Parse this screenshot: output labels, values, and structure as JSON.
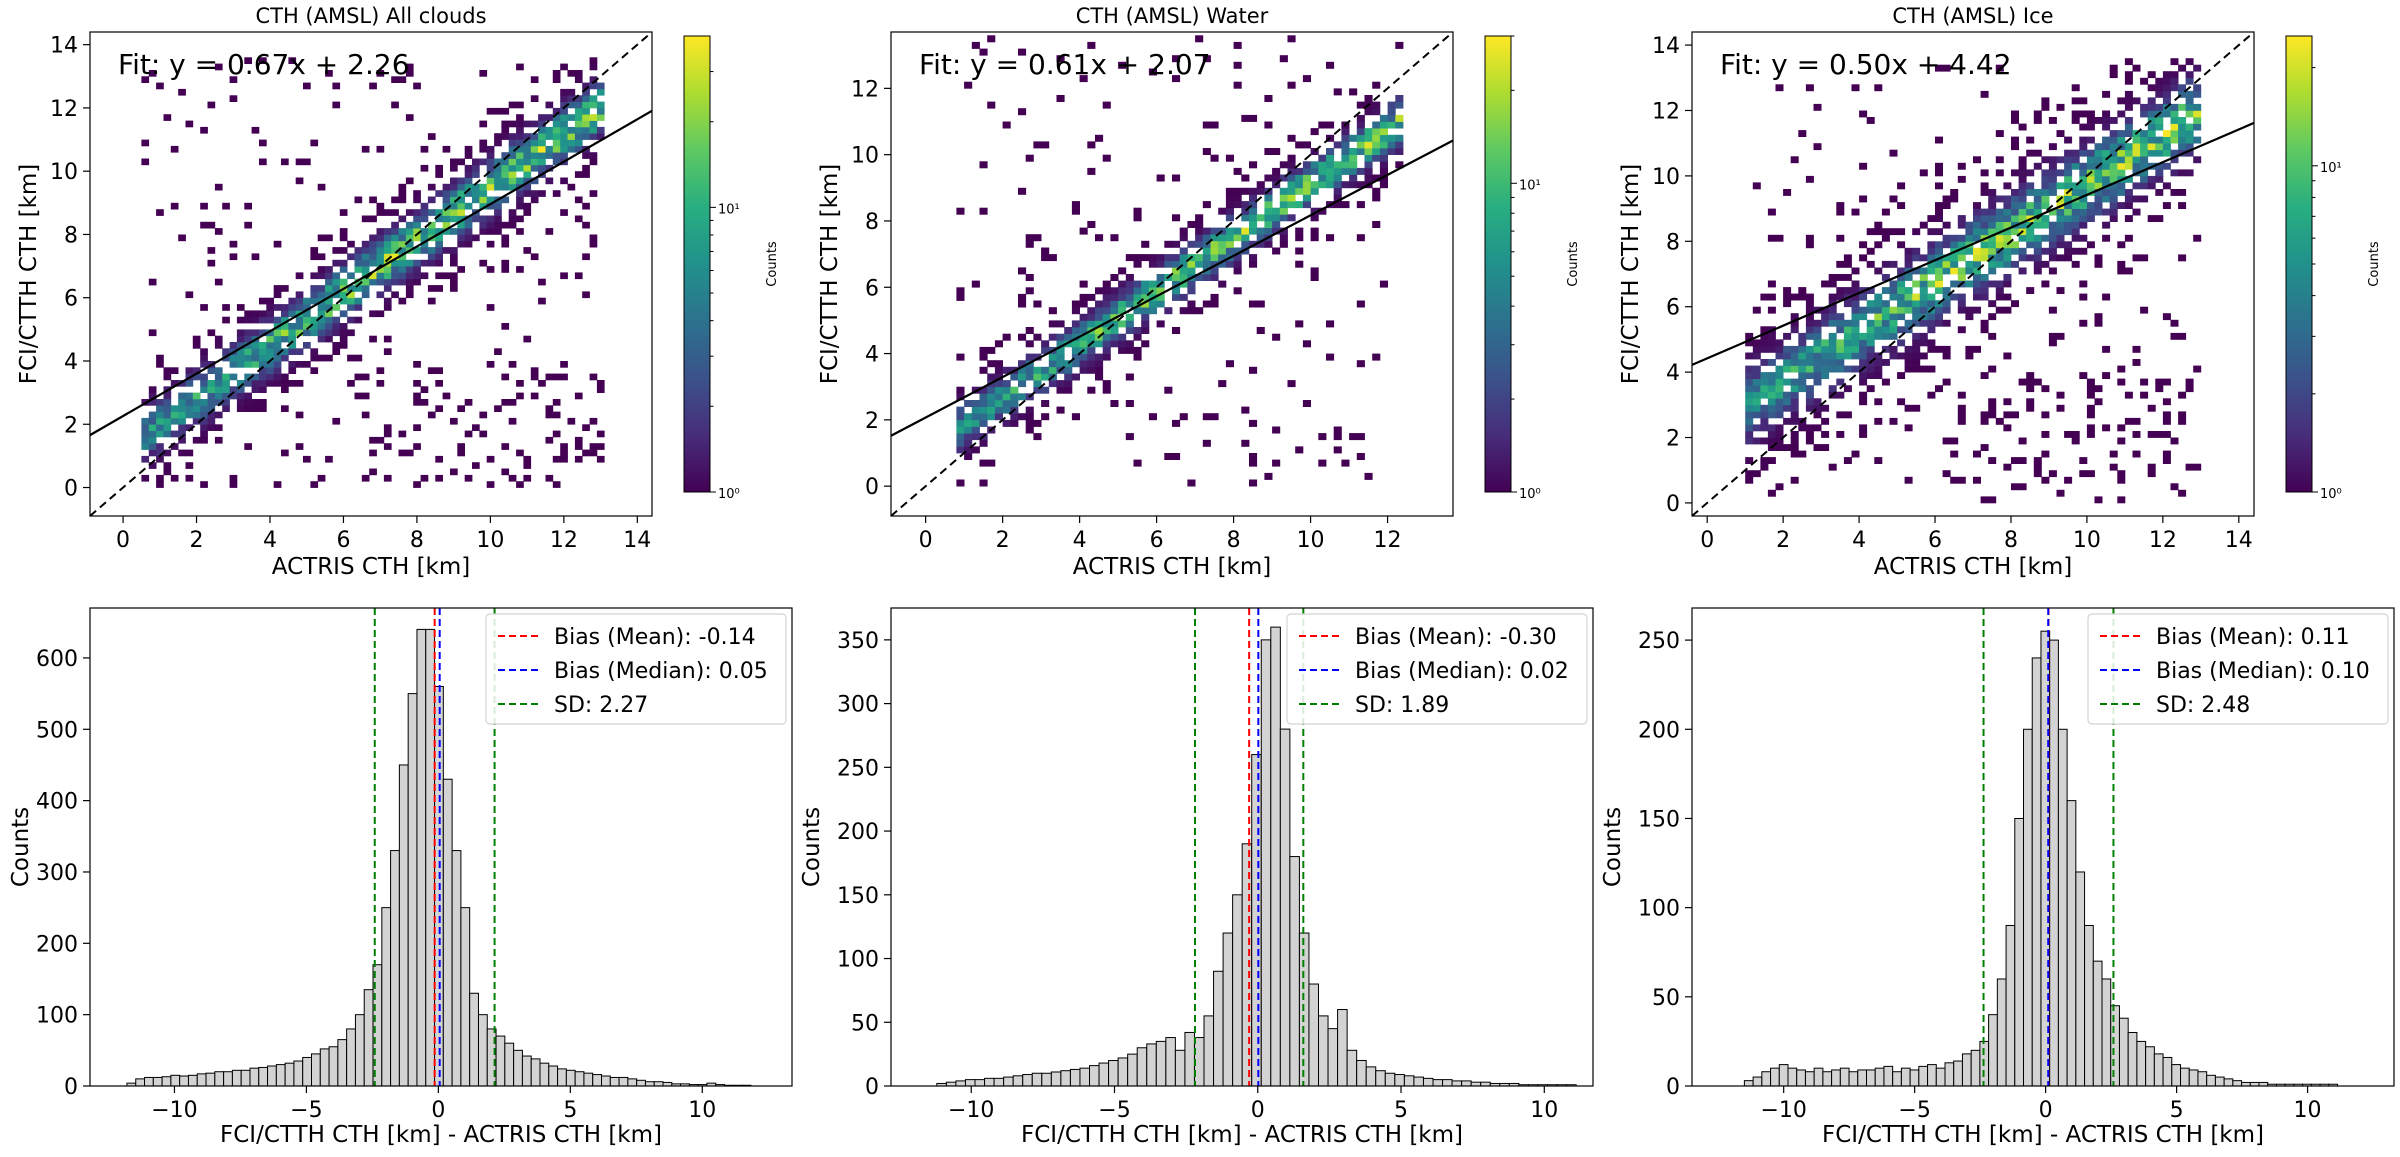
{
  "chart_data": [
    {
      "type": "heatmap",
      "title": "CTH (AMSL) All clouds",
      "xlabel": "ACTRIS CTH [km]",
      "ylabel": "FCI/CTTH CTH [km]",
      "xlim": [
        -0.9,
        14.4
      ],
      "ylim": [
        -0.9,
        14.4
      ],
      "xticks": [
        0,
        2,
        4,
        6,
        8,
        10,
        12,
        14
      ],
      "yticks": [
        0,
        2,
        4,
        6,
        8,
        10,
        12,
        14
      ],
      "fit": {
        "slope": 0.67,
        "intercept": 2.26,
        "label": "Fit: y = 0.67x + 2.26"
      },
      "one_to_one": true,
      "colorbar": {
        "label": "Counts",
        "scale": "log",
        "ticks": [
          "10⁰",
          "10¹"
        ],
        "vmin": 1,
        "vmax": 40
      },
      "density": {
        "x_range": [
          0.5,
          13
        ],
        "spread": 1.0,
        "extra_ice": true
      }
    },
    {
      "type": "heatmap",
      "title": "CTH (AMSL) Water",
      "xlabel": "ACTRIS CTH [km]",
      "ylabel": "FCI/CTTH CTH [km]",
      "xlim": [
        -0.9,
        13.7
      ],
      "ylim": [
        -0.9,
        13.7
      ],
      "xticks": [
        0,
        2,
        4,
        6,
        8,
        10,
        12
      ],
      "yticks": [
        0,
        2,
        4,
        6,
        8,
        10,
        12
      ],
      "fit": {
        "slope": 0.61,
        "intercept": 2.07,
        "label": "Fit: y = 0.61x + 2.07"
      },
      "one_to_one": true,
      "colorbar": {
        "label": "Counts",
        "scale": "log",
        "ticks": [
          "10⁰",
          "10¹"
        ],
        "vmin": 1,
        "vmax": 30
      },
      "density": {
        "x_range": [
          0.8,
          12.2
        ],
        "spread": 0.8,
        "extra_ice": false
      }
    },
    {
      "type": "heatmap",
      "title": "CTH (AMSL) Ice",
      "xlabel": "ACTRIS CTH [km]",
      "ylabel": "FCI/CTTH CTH [km]",
      "xlim": [
        -0.4,
        14.4
      ],
      "ylim": [
        -0.4,
        14.4
      ],
      "xticks": [
        0,
        2,
        4,
        6,
        8,
        10,
        12,
        14
      ],
      "yticks": [
        0,
        2,
        4,
        6,
        8,
        10,
        12,
        14
      ],
      "fit": {
        "slope": 0.5,
        "intercept": 4.42,
        "label": "Fit: y = 0.50x + 4.42"
      },
      "one_to_one": true,
      "colorbar": {
        "label": "Counts",
        "scale": "log",
        "ticks": [
          "10⁰",
          "10¹"
        ],
        "vmin": 1,
        "vmax": 25
      },
      "density": {
        "x_range": [
          1,
          12.8
        ],
        "spread": 1.3,
        "extra_ice": true
      }
    },
    {
      "type": "bar",
      "title": "",
      "xlabel": "FCI/CTTH CTH [km] - ACTRIS CTH [km]",
      "ylabel": "Counts",
      "xlim": [
        -13.2,
        13.4
      ],
      "ylim": [
        0,
        670
      ],
      "xticks": [
        -10,
        -5,
        0,
        5,
        10
      ],
      "xtick_labels": [
        "−10",
        "−5",
        "0",
        "5",
        "10"
      ],
      "yticks": [
        0,
        100,
        200,
        300,
        400,
        500,
        600
      ],
      "bins": {
        "start": -11.8,
        "width": 0.333,
        "counts": [
          4,
          10,
          12,
          12,
          13,
          15,
          14,
          15,
          17,
          18,
          20,
          20,
          22,
          22,
          25,
          26,
          28,
          30,
          32,
          35,
          40,
          45,
          52,
          55,
          65,
          80,
          100,
          135,
          170,
          250,
          330,
          450,
          550,
          640,
          640,
          560,
          430,
          330,
          250,
          130,
          100,
          80,
          70,
          60,
          50,
          42,
          38,
          32,
          28,
          24,
          22,
          20,
          18,
          16,
          14,
          12,
          12,
          10,
          8,
          6,
          6,
          5,
          3,
          3,
          2,
          2,
          4,
          2,
          1,
          1,
          1
        ]
      },
      "lines": {
        "mean": -0.14,
        "median": 0.05,
        "sd_lower": -2.41,
        "sd_upper": 2.13
      },
      "legend": [
        "Bias (Mean): -0.14",
        "Bias (Median): 0.05",
        "SD: 2.27"
      ]
    },
    {
      "type": "bar",
      "title": "",
      "xlabel": "FCI/CTTH CTH [km] - ACTRIS CTH [km]",
      "ylabel": "Counts",
      "xlim": [
        -12.8,
        11.7
      ],
      "ylim": [
        0,
        375
      ],
      "xticks": [
        -10,
        -5,
        0,
        5,
        10
      ],
      "xtick_labels": [
        "−10",
        "−5",
        "0",
        "5",
        "10"
      ],
      "yticks": [
        0,
        50,
        100,
        150,
        200,
        250,
        300,
        350
      ],
      "bins": {
        "start": -11.2,
        "width": 0.333,
        "counts": [
          2,
          3,
          4,
          5,
          5,
          6,
          6,
          7,
          8,
          9,
          10,
          10,
          11,
          12,
          13,
          14,
          16,
          18,
          20,
          22,
          25,
          30,
          33,
          35,
          38,
          28,
          42,
          38,
          55,
          90,
          120,
          150,
          190,
          260,
          350,
          360,
          280,
          180,
          120,
          80,
          55,
          45,
          60,
          28,
          20,
          15,
          12,
          10,
          9,
          8,
          7,
          6,
          5,
          5,
          4,
          4,
          3,
          3,
          2,
          2,
          2,
          1,
          1,
          1,
          1,
          1,
          1
        ]
      },
      "lines": {
        "mean": -0.3,
        "median": 0.02,
        "sd_lower": -2.19,
        "sd_upper": 1.59
      },
      "legend": [
        "Bias (Mean): -0.30",
        "Bias (Median): 0.02",
        "SD: 1.89"
      ]
    },
    {
      "type": "bar",
      "title": "",
      "xlabel": "FCI/CTTH CTH [km] - ACTRIS CTH [km]",
      "ylabel": "Counts",
      "xlim": [
        -13.5,
        13.3
      ],
      "ylim": [
        0,
        268
      ],
      "xticks": [
        -10,
        -5,
        0,
        5,
        10
      ],
      "xtick_labels": [
        "−10",
        "−5",
        "0",
        "5",
        "10"
      ],
      "yticks": [
        0,
        50,
        100,
        150,
        200,
        250
      ],
      "bins": {
        "start": -11.5,
        "width": 0.333,
        "counts": [
          3,
          5,
          8,
          10,
          12,
          10,
          9,
          8,
          10,
          8,
          9,
          10,
          8,
          9,
          9,
          10,
          11,
          8,
          10,
          9,
          11,
          12,
          10,
          13,
          14,
          18,
          20,
          25,
          40,
          60,
          90,
          150,
          200,
          240,
          255,
          250,
          200,
          160,
          120,
          90,
          70,
          60,
          45,
          38,
          30,
          25,
          22,
          18,
          16,
          12,
          10,
          9,
          8,
          6,
          5,
          4,
          3,
          2,
          2,
          2,
          1,
          1,
          1,
          1,
          1,
          1,
          1,
          1
        ]
      },
      "lines": {
        "mean": 0.11,
        "median": 0.1,
        "sd_lower": -2.37,
        "sd_upper": 2.59
      },
      "legend": [
        "Bias (Mean): 0.11",
        "Bias (Median): 0.10",
        "SD: 2.48"
      ]
    }
  ],
  "colors": {
    "bar_fill": "#d3d3d3",
    "bar_edge": "#000000",
    "mean_line": "#ff0000",
    "median_line": "#0000ff",
    "sd_line": "#008000",
    "legend_border": "#d4d4d4"
  }
}
